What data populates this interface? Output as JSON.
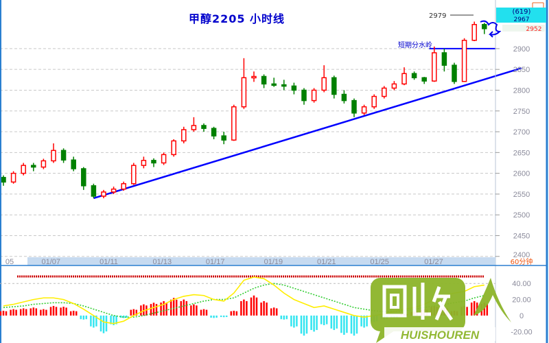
{
  "title": "甲醇2205 小时线",
  "period_label": "60分钟",
  "watermark": {
    "text_cn": "回收人",
    "text_en": "HUISHOUREN",
    "color": "#8db52a"
  },
  "right_panel": {
    "contract_code": "(619)",
    "current_price": "2967",
    "last_price_red": "2952"
  },
  "colors": {
    "up": "#ff0000",
    "down": "#008000",
    "trendline": "#0000ff",
    "dif": "#ffee00",
    "dea": "#33cc33",
    "hist_pos": "#ff0000",
    "hist_neg": "#33e5f0",
    "axis_strip": "#c6daf0",
    "title": "#0000cc"
  },
  "chart_data": [
    {
      "type": "candlestick",
      "title": "甲醇2205 小时线",
      "ylim": [
        2398,
        3017
      ],
      "y_ticks": [
        2400,
        2450,
        2500,
        2550,
        2600,
        2650,
        2700,
        2750,
        2800,
        2850,
        2900
      ],
      "y_tick_labels": [
        "2400",
        "2450",
        "2500",
        "2550",
        "2600",
        "2650",
        "2700",
        "2750",
        "2800",
        "2850",
        "2900"
      ],
      "x_ticks": [
        {
          "index": 0.2,
          "label": "05"
        },
        {
          "index": 3.8,
          "label": "01/07"
        },
        {
          "index": 9.6,
          "label": "01/11"
        },
        {
          "index": 14.9,
          "label": "01/13"
        },
        {
          "index": 20.2,
          "label": "01/17"
        },
        {
          "index": 26,
          "label": "01/19"
        },
        {
          "index": 31.3,
          "label": "01/21"
        },
        {
          "index": 36.6,
          "label": "01/25"
        },
        {
          "index": 42,
          "label": "01/27"
        }
      ],
      "ohlc": [
        [
          2590,
          2595,
          2570,
          2579
        ],
        [
          2579,
          2605,
          2575,
          2600
        ],
        [
          2600,
          2625,
          2595,
          2619
        ],
        [
          2619,
          2625,
          2605,
          2615
        ],
        [
          2615,
          2635,
          2610,
          2630
        ],
        [
          2630,
          2672,
          2625,
          2655
        ],
        [
          2655,
          2660,
          2625,
          2632
        ],
        [
          2632,
          2640,
          2605,
          2611
        ],
        [
          2611,
          2615,
          2560,
          2570
        ],
        [
          2570,
          2575,
          2540,
          2545
        ],
        [
          2545,
          2560,
          2540,
          2555
        ],
        [
          2555,
          2568,
          2550,
          2562
        ],
        [
          2562,
          2580,
          2558,
          2575
        ],
        [
          2575,
          2625,
          2572,
          2619
        ],
        [
          2619,
          2640,
          2612,
          2631
        ],
        [
          2631,
          2636,
          2615,
          2625
        ],
        [
          2625,
          2650,
          2620,
          2645
        ],
        [
          2645,
          2682,
          2640,
          2678
        ],
        [
          2678,
          2712,
          2672,
          2705
        ],
        [
          2705,
          2735,
          2700,
          2715
        ],
        [
          2715,
          2720,
          2700,
          2708
        ],
        [
          2708,
          2712,
          2682,
          2690
        ],
        [
          2690,
          2700,
          2670,
          2680
        ],
        [
          2680,
          2765,
          2678,
          2760
        ],
        [
          2760,
          2877,
          2755,
          2830
        ],
        [
          2830,
          2845,
          2820,
          2833
        ],
        [
          2833,
          2838,
          2805,
          2815
        ],
        [
          2815,
          2830,
          2808,
          2813
        ],
        [
          2813,
          2825,
          2800,
          2810
        ],
        [
          2810,
          2818,
          2790,
          2800
        ],
        [
          2800,
          2805,
          2765,
          2775
        ],
        [
          2775,
          2805,
          2770,
          2800
        ],
        [
          2800,
          2860,
          2795,
          2830
        ],
        [
          2830,
          2835,
          2780,
          2790
        ],
        [
          2790,
          2800,
          2768,
          2775
        ],
        [
          2775,
          2780,
          2735,
          2745
        ],
        [
          2745,
          2765,
          2740,
          2760
        ],
        [
          2760,
          2790,
          2755,
          2785
        ],
        [
          2785,
          2810,
          2780,
          2805
        ],
        [
          2805,
          2822,
          2800,
          2815
        ],
        [
          2815,
          2855,
          2812,
          2840
        ],
        [
          2840,
          2845,
          2825,
          2830
        ],
        [
          2830,
          2832,
          2815,
          2822
        ],
        [
          2822,
          2905,
          2820,
          2890
        ],
        [
          2890,
          2900,
          2845,
          2860
        ],
        [
          2860,
          2866,
          2815,
          2821
        ],
        [
          2821,
          2925,
          2820,
          2920
        ],
        [
          2920,
          2965,
          2918,
          2958
        ],
        [
          2958,
          2962,
          2935,
          2948
        ]
      ],
      "trendline": [
        [
          9,
          2540
        ],
        [
          51.7,
          2853
        ]
      ],
      "support_line": {
        "price": 2900,
        "from_index": 42.5,
        "label": "短期分水岭"
      },
      "high_annotation": {
        "price": 2979,
        "label": "2979"
      },
      "grid": true
    },
    {
      "type": "macd",
      "ylim": [
        -34,
        55
      ],
      "y_ticks": [
        40,
        20,
        0,
        -20
      ],
      "y_tick_labels": [
        "40.00",
        "20.00",
        "0",
        "-20.00"
      ],
      "histogram": [
        6,
        8,
        9,
        10,
        8,
        12,
        11,
        6,
        -5,
        -15,
        -22,
        -12,
        -3,
        8,
        14,
        16,
        18,
        22,
        20,
        14,
        8,
        -3,
        -2,
        6,
        20,
        25,
        18,
        10,
        -5,
        -15,
        -25,
        -20,
        -12,
        -18,
        -24,
        -25,
        -15,
        -8,
        -5,
        -3,
        2,
        5,
        8,
        12,
        10,
        6,
        12,
        18,
        16
      ],
      "dif": [
        12,
        14,
        17,
        20,
        22,
        22,
        20,
        15,
        8,
        0,
        -8,
        -10,
        -7,
        0,
        6,
        10,
        14,
        20,
        24,
        26,
        25,
        20,
        18,
        28,
        44,
        48,
        46,
        38,
        28,
        20,
        15,
        10,
        12,
        8,
        4,
        0,
        -2,
        0,
        2,
        5,
        8,
        10,
        14,
        20,
        25,
        28,
        30,
        36,
        38
      ],
      "dea": [
        10,
        11,
        12,
        14,
        15,
        16,
        16,
        15,
        12,
        8,
        4,
        0,
        -2,
        -2,
        0,
        3,
        6,
        9,
        12,
        15,
        18,
        20,
        20,
        22,
        28,
        34,
        38,
        40,
        38,
        34,
        30,
        26,
        22,
        18,
        14,
        10,
        8,
        6,
        5,
        5,
        6,
        8,
        10,
        12,
        14,
        16,
        18,
        22,
        25
      ]
    }
  ]
}
